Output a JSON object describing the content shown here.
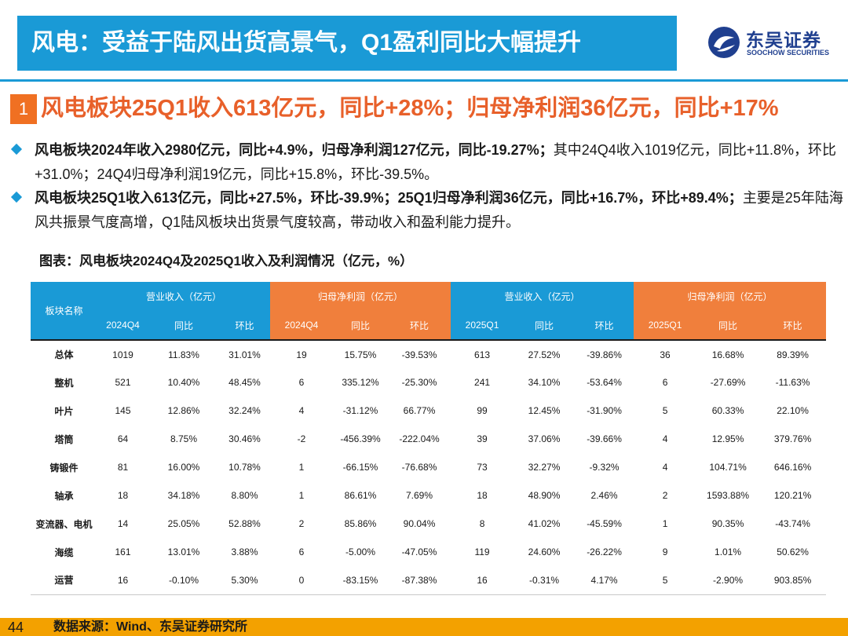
{
  "header": {
    "title": "风电：受益于陆风出货高景气，Q1盈利同比大幅提升",
    "logo_cn": "东吴证券",
    "logo_en": "SOOCHOW SECURITIES"
  },
  "colors": {
    "accent_blue": "#1a9ad6",
    "accent_orange": "#f07f3c",
    "footer_yellow": "#f3a100",
    "section_title": "#e8602a"
  },
  "section": {
    "number": "1",
    "title": "风电板块25Q1收入613亿元，同比+28%；归母净利润36亿元，同比+17%"
  },
  "bullets": [
    {
      "bold": "风电板块2024年收入2980亿元，同比+4.9%，归母净利润127亿元，同比-19.27%；",
      "normal": "其中24Q4收入1019亿元，同比+11.8%，环比+31.0%；24Q4归母净利润19亿元，同比+15.8%，环比-39.5%。"
    },
    {
      "bold": "风电板块25Q1收入613亿元，同比+27.5%，环比-39.9%；25Q1归母净利润36亿元，同比+16.7%，环比+89.4%；",
      "normal": "主要是25年陆海风共振景气度高增，Q1陆风板块出货景气度较高，带动收入和盈利能力提升。"
    }
  ],
  "table": {
    "caption": "图表：风电板块2024Q4及2025Q1收入及利润情况（亿元，%）",
    "corner": "板块名称",
    "groups": [
      "营业收入（亿元）",
      "归母净利润（亿元）",
      "营业收入（亿元）",
      "归母净利润（亿元）"
    ],
    "subheaders": [
      "2024Q4",
      "同比",
      "环比",
      "2024Q4",
      "同比",
      "环比",
      "2025Q1",
      "同比",
      "环比",
      "2025Q1",
      "同比",
      "环比"
    ],
    "rows": [
      {
        "name": "总体",
        "cells": [
          "1019",
          "11.83%",
          "31.01%",
          "19",
          "15.75%",
          "-39.53%",
          "613",
          "27.52%",
          "-39.86%",
          "36",
          "16.68%",
          "89.39%"
        ]
      },
      {
        "name": "整机",
        "cells": [
          "521",
          "10.40%",
          "48.45%",
          "6",
          "335.12%",
          "-25.30%",
          "241",
          "34.10%",
          "-53.64%",
          "6",
          "-27.69%",
          "-11.63%"
        ]
      },
      {
        "name": "叶片",
        "cells": [
          "145",
          "12.86%",
          "32.24%",
          "4",
          "-31.12%",
          "66.77%",
          "99",
          "12.45%",
          "-31.90%",
          "5",
          "60.33%",
          "22.10%"
        ]
      },
      {
        "name": "塔筒",
        "cells": [
          "64",
          "8.75%",
          "30.46%",
          "-2",
          "-456.39%",
          "-222.04%",
          "39",
          "37.06%",
          "-39.66%",
          "4",
          "12.95%",
          "379.76%"
        ]
      },
      {
        "name": "铸锻件",
        "cells": [
          "81",
          "16.00%",
          "10.78%",
          "1",
          "-66.15%",
          "-76.68%",
          "73",
          "32.27%",
          "-9.32%",
          "4",
          "104.71%",
          "646.16%"
        ]
      },
      {
        "name": "轴承",
        "cells": [
          "18",
          "34.18%",
          "8.80%",
          "1",
          "86.61%",
          "7.69%",
          "18",
          "48.90%",
          "2.46%",
          "2",
          "1593.88%",
          "120.21%"
        ]
      },
      {
        "name": "变流器、电机",
        "cells": [
          "14",
          "25.05%",
          "52.88%",
          "2",
          "85.86%",
          "90.04%",
          "8",
          "41.02%",
          "-45.59%",
          "1",
          "90.35%",
          "-43.74%"
        ]
      },
      {
        "name": "海缆",
        "cells": [
          "161",
          "13.01%",
          "3.88%",
          "6",
          "-5.00%",
          "-47.05%",
          "119",
          "24.60%",
          "-26.22%",
          "9",
          "1.01%",
          "50.62%"
        ]
      },
      {
        "name": "运营",
        "cells": [
          "16",
          "-0.10%",
          "5.30%",
          "0",
          "-83.15%",
          "-87.38%",
          "16",
          "-0.31%",
          "4.17%",
          "5",
          "-2.90%",
          "903.85%"
        ]
      }
    ]
  },
  "footer": {
    "page": "44",
    "source": "数据来源：Wind、东吴证券研究所"
  }
}
